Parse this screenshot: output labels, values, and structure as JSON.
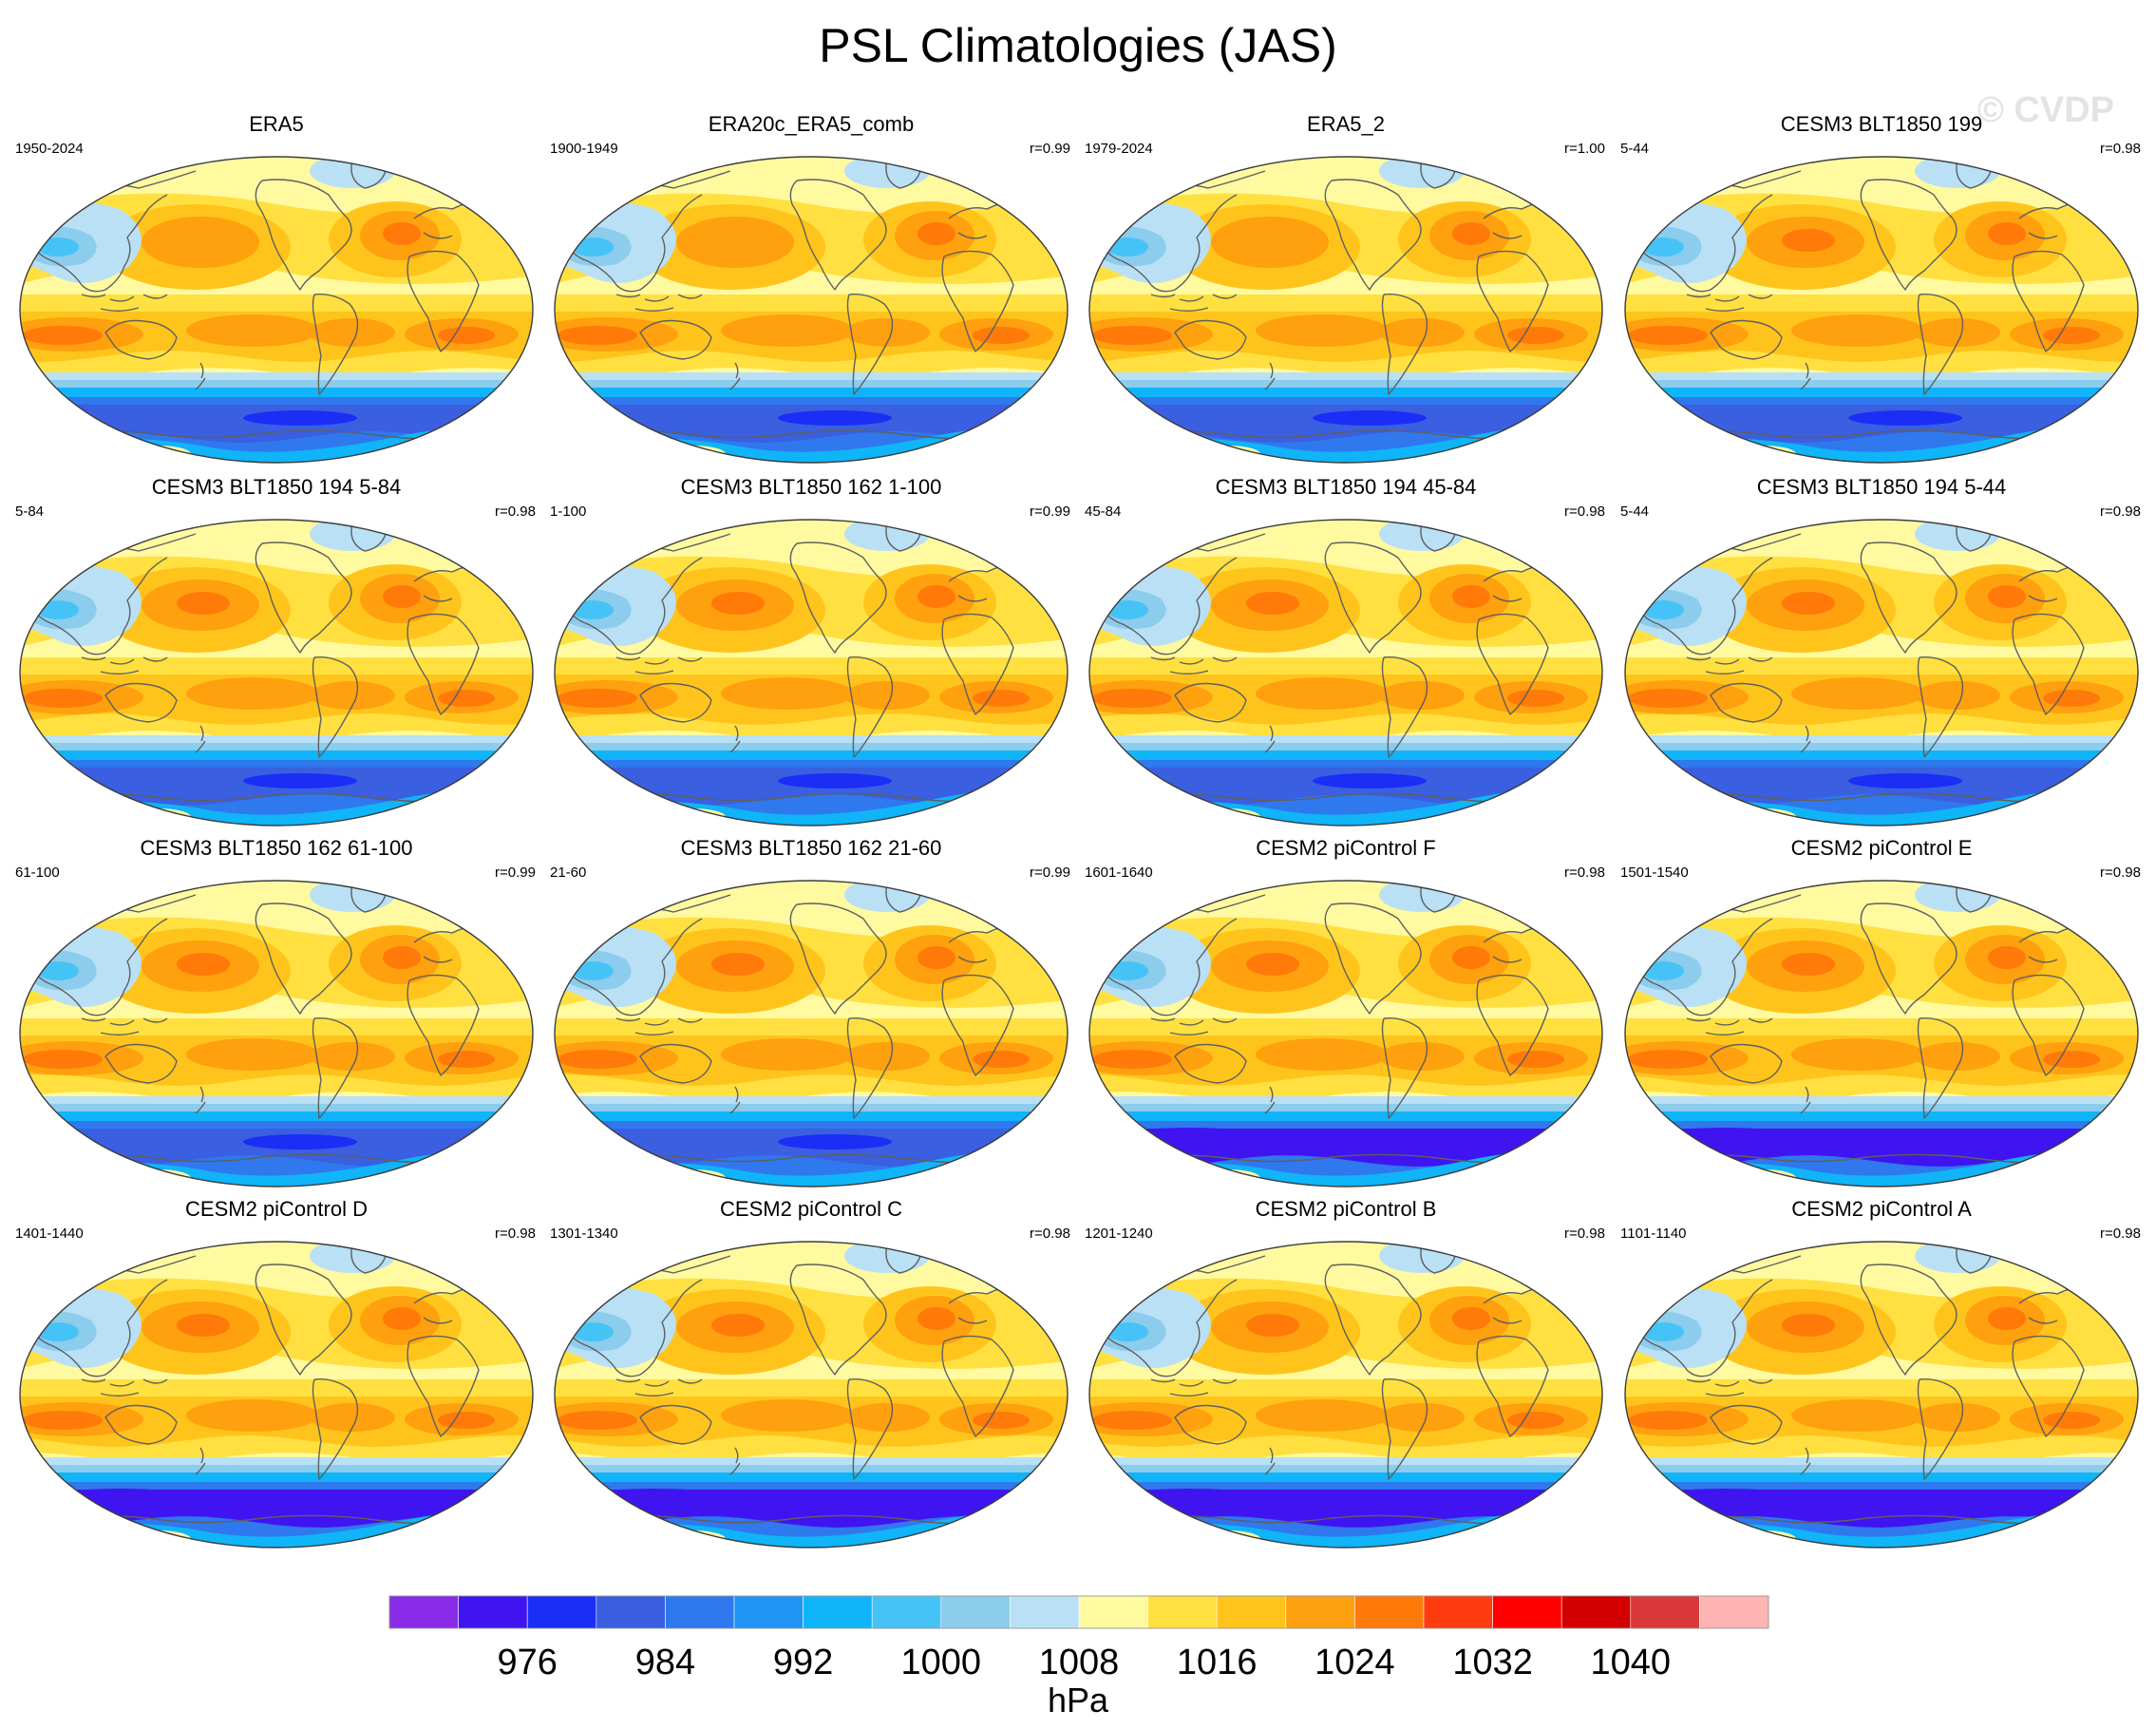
{
  "title": "PSL Climatologies (JAS)",
  "watermark": "© CVDP",
  "panels": [
    {
      "name": "ERA5",
      "years": "1950-2024",
      "r": "",
      "variant": "obs"
    },
    {
      "name": "ERA20c_ERA5_comb",
      "years": "1900-1949",
      "r": "r=0.99",
      "variant": "obs"
    },
    {
      "name": "ERA5_2",
      "years": "1979-2024",
      "r": "r=1.00",
      "variant": "obs"
    },
    {
      "name": "CESM3 BLT1850 199",
      "years": "5-44",
      "r": "r=0.98",
      "variant": "cesm3"
    },
    {
      "name": "CESM3 BLT1850 194 5-84",
      "years": "5-84",
      "r": "r=0.98",
      "variant": "cesm3"
    },
    {
      "name": "CESM3 BLT1850 162 1-100",
      "years": "1-100",
      "r": "r=0.99",
      "variant": "cesm3"
    },
    {
      "name": "CESM3 BLT1850 194 45-84",
      "years": "45-84",
      "r": "r=0.98",
      "variant": "cesm3"
    },
    {
      "name": "CESM3 BLT1850 194 5-44",
      "years": "5-44",
      "r": "r=0.98",
      "variant": "cesm3"
    },
    {
      "name": "CESM3 BLT1850 162 61-100",
      "years": "61-100",
      "r": "r=0.99",
      "variant": "cesm3"
    },
    {
      "name": "CESM3 BLT1850 162 21-60",
      "years": "21-60",
      "r": "r=0.99",
      "variant": "cesm3"
    },
    {
      "name": "CESM2 piControl F",
      "years": "1601-1640",
      "r": "r=0.98",
      "variant": "cesm2"
    },
    {
      "name": "CESM2 piControl E",
      "years": "1501-1540",
      "r": "r=0.98",
      "variant": "cesm2"
    },
    {
      "name": "CESM2 piControl D",
      "years": "1401-1440",
      "r": "r=0.98",
      "variant": "cesm2"
    },
    {
      "name": "CESM2 piControl C",
      "years": "1301-1340",
      "r": "r=0.98",
      "variant": "cesm2"
    },
    {
      "name": "CESM2 piControl B",
      "years": "1201-1240",
      "r": "r=0.98",
      "variant": "cesm2"
    },
    {
      "name": "CESM2 piControl A",
      "years": "1101-1140",
      "r": "r=0.98",
      "variant": "cesm2"
    }
  ],
  "colorbar": {
    "unit": "hPa",
    "levels": [
      972,
      976,
      980,
      984,
      988,
      992,
      996,
      1000,
      1004,
      1008,
      1012,
      1016,
      1020,
      1024,
      1028,
      1032,
      1036,
      1040,
      1044
    ],
    "tick_labels": [
      "976",
      "984",
      "992",
      "1000",
      "1008",
      "1016",
      "1024",
      "1032",
      "1040"
    ],
    "colors": [
      "#8a2be8",
      "#3f14f0",
      "#1b2ef5",
      "#3a5fe0",
      "#2f78ee",
      "#1f94f5",
      "#10b4f8",
      "#46c3f6",
      "#8cccec",
      "#b9e0f5",
      "#fffaa0",
      "#ffe040",
      "#ffc41c",
      "#ffa00e",
      "#ff7a08",
      "#ff3c10",
      "#ff0000",
      "#d20000",
      "#d83838",
      "#ffb4b4"
    ]
  },
  "colors": {
    "coast": "#5f5f5f",
    "map_edge": "#3c3c3c"
  }
}
